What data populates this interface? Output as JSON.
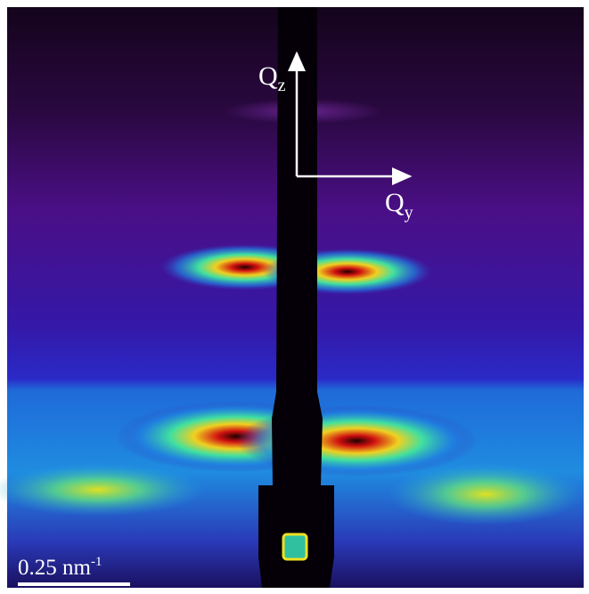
{
  "axes": {
    "vertical": {
      "symbol": "Q",
      "subscript": "z"
    },
    "horizontal": {
      "symbol": "Q",
      "subscript": "y"
    }
  },
  "scale_bar": {
    "label": "0.25 nm",
    "superscript": "-1"
  }
}
